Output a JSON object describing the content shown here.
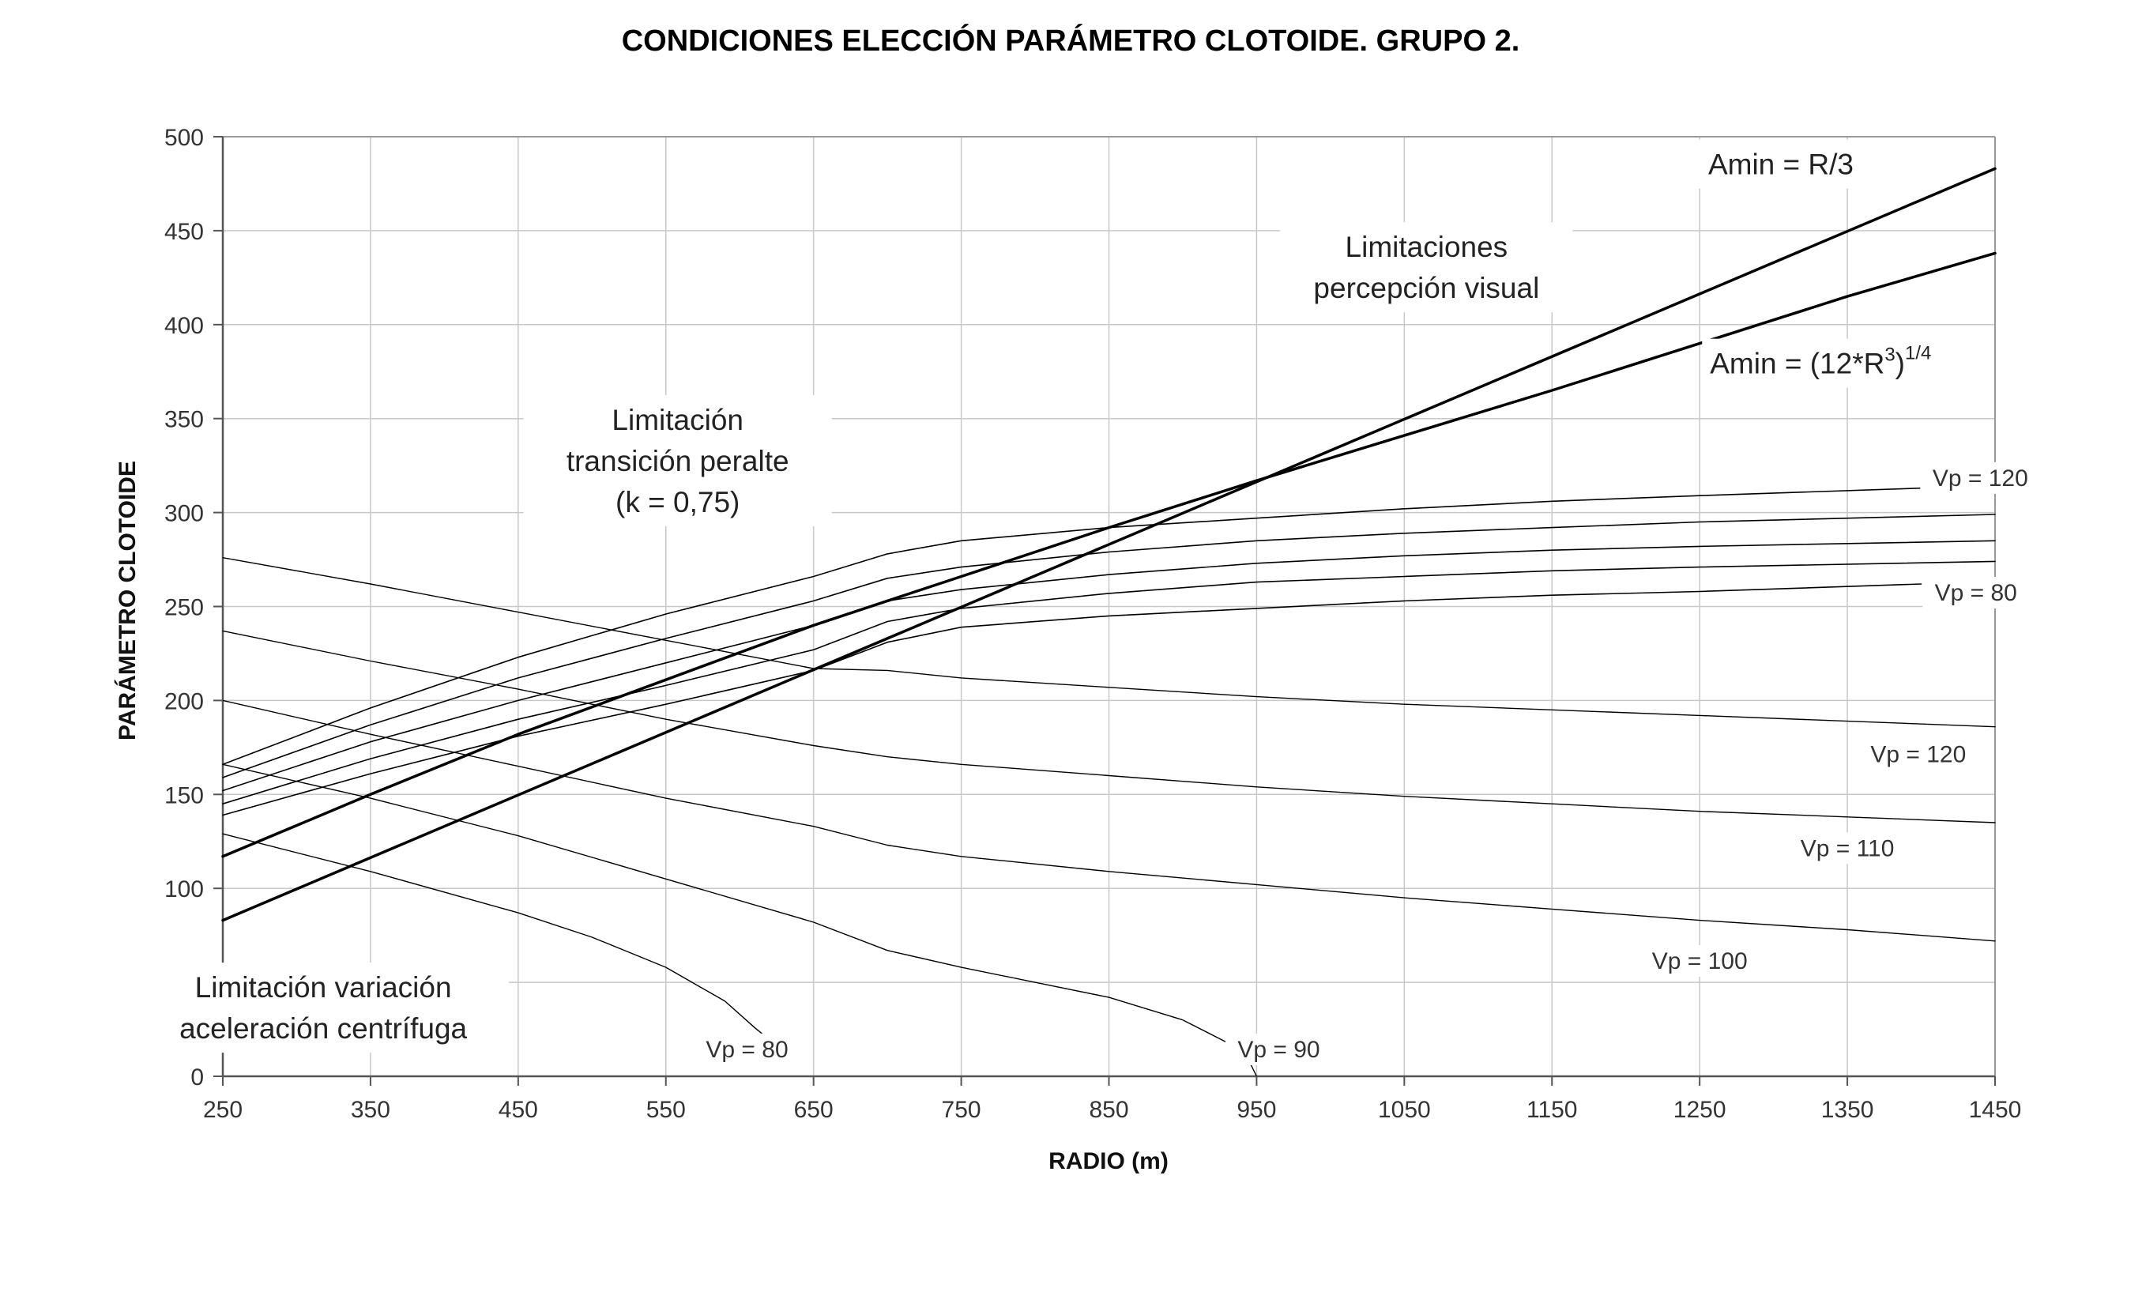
{
  "chart_data": {
    "type": "line",
    "title": "CONDICIONES ELECCIÓN PARÁMETRO CLOTOIDE. GRUPO 2.",
    "xlabel": "RADIO (m)",
    "ylabel": "PARÁMETRO CLOTOIDE",
    "xlim": [
      250,
      1450
    ],
    "ylim": [
      0,
      500
    ],
    "xticks": [
      250,
      350,
      450,
      550,
      650,
      750,
      850,
      950,
      1050,
      1150,
      1250,
      1350,
      1450
    ],
    "yticks": [
      0,
      50,
      100,
      150,
      200,
      250,
      300,
      350,
      400,
      450,
      500
    ],
    "grid": true,
    "legend": "none",
    "colors": {
      "grid": "#c8c8c8",
      "axis": "#555555",
      "line": "#000000",
      "frame": "#9a9a9a"
    },
    "series": [
      {
        "name": "",
        "group": "amin-r3",
        "width": 3.5,
        "points": [
          [
            250,
            83
          ],
          [
            1450,
            483
          ]
        ]
      },
      {
        "name": "",
        "group": "amin-root",
        "width": 3.5,
        "points": [
          [
            250,
            117
          ],
          [
            350,
            150
          ],
          [
            450,
            182
          ],
          [
            550,
            211
          ],
          [
            650,
            240
          ],
          [
            750,
            266
          ],
          [
            850,
            292
          ],
          [
            950,
            317
          ],
          [
            1050,
            341
          ],
          [
            1150,
            365
          ],
          [
            1250,
            390
          ],
          [
            1350,
            415
          ],
          [
            1450,
            438
          ]
        ]
      },
      {
        "name": "",
        "group": "peralte",
        "width": 1.6,
        "points": [
          [
            250,
            166
          ],
          [
            350,
            196
          ],
          [
            450,
            223
          ],
          [
            550,
            246
          ],
          [
            650,
            266
          ],
          [
            700,
            278
          ],
          [
            750,
            285
          ],
          [
            850,
            292
          ],
          [
            950,
            297
          ],
          [
            1050,
            302
          ],
          [
            1150,
            306
          ],
          [
            1250,
            309
          ],
          [
            1400,
            313
          ]
        ]
      },
      {
        "name": "",
        "group": "peralte",
        "width": 1.6,
        "points": [
          [
            250,
            159
          ],
          [
            350,
            187
          ],
          [
            450,
            212
          ],
          [
            550,
            233
          ],
          [
            650,
            253
          ],
          [
            700,
            265
          ],
          [
            750,
            271
          ],
          [
            850,
            279
          ],
          [
            950,
            285
          ],
          [
            1050,
            289
          ],
          [
            1150,
            292
          ],
          [
            1250,
            295
          ],
          [
            1450,
            299
          ]
        ]
      },
      {
        "name": "",
        "group": "peralte",
        "width": 1.6,
        "points": [
          [
            250,
            152
          ],
          [
            350,
            178
          ],
          [
            450,
            200
          ],
          [
            550,
            220
          ],
          [
            650,
            240
          ],
          [
            700,
            253
          ],
          [
            750,
            259
          ],
          [
            850,
            267
          ],
          [
            950,
            273
          ],
          [
            1050,
            277
          ],
          [
            1150,
            280
          ],
          [
            1250,
            282
          ],
          [
            1450,
            285
          ]
        ]
      },
      {
        "name": "",
        "group": "peralte",
        "width": 1.6,
        "points": [
          [
            250,
            145
          ],
          [
            350,
            169
          ],
          [
            450,
            190
          ],
          [
            550,
            208
          ],
          [
            650,
            227
          ],
          [
            700,
            242
          ],
          [
            750,
            249
          ],
          [
            850,
            257
          ],
          [
            950,
            263
          ],
          [
            1050,
            266
          ],
          [
            1150,
            269
          ],
          [
            1250,
            271
          ],
          [
            1450,
            274
          ]
        ]
      },
      {
        "name": "",
        "group": "peralte",
        "width": 1.6,
        "points": [
          [
            250,
            139
          ],
          [
            350,
            161
          ],
          [
            450,
            181
          ],
          [
            550,
            198
          ],
          [
            650,
            216
          ],
          [
            700,
            231
          ],
          [
            750,
            239
          ],
          [
            850,
            245
          ],
          [
            950,
            249
          ],
          [
            1050,
            253
          ],
          [
            1150,
            256
          ],
          [
            1250,
            258
          ],
          [
            1400,
            262
          ]
        ]
      },
      {
        "name": "",
        "group": "centrifuga",
        "width": 1.4,
        "points": [
          [
            250,
            276
          ],
          [
            350,
            262
          ],
          [
            450,
            247
          ],
          [
            550,
            232
          ],
          [
            650,
            217
          ],
          [
            700,
            216
          ],
          [
            750,
            212
          ],
          [
            850,
            207
          ],
          [
            950,
            202
          ],
          [
            1050,
            198
          ],
          [
            1150,
            195
          ],
          [
            1250,
            192
          ],
          [
            1350,
            189
          ],
          [
            1450,
            186
          ]
        ]
      },
      {
        "name": "",
        "group": "centrifuga",
        "width": 1.4,
        "points": [
          [
            250,
            237
          ],
          [
            350,
            221
          ],
          [
            450,
            206
          ],
          [
            550,
            190
          ],
          [
            650,
            176
          ],
          [
            700,
            170
          ],
          [
            750,
            166
          ],
          [
            850,
            160
          ],
          [
            950,
            154
          ],
          [
            1050,
            149
          ],
          [
            1150,
            145
          ],
          [
            1250,
            141
          ],
          [
            1350,
            138
          ],
          [
            1450,
            135
          ]
        ]
      },
      {
        "name": "",
        "group": "centrifuga",
        "width": 1.4,
        "points": [
          [
            250,
            200
          ],
          [
            350,
            182
          ],
          [
            450,
            165
          ],
          [
            550,
            148
          ],
          [
            650,
            133
          ],
          [
            700,
            123
          ],
          [
            750,
            117
          ],
          [
            850,
            109
          ],
          [
            950,
            102
          ],
          [
            1050,
            95
          ],
          [
            1150,
            89
          ],
          [
            1250,
            83
          ],
          [
            1350,
            78
          ],
          [
            1450,
            72
          ]
        ]
      },
      {
        "name": "",
        "group": "centrifuga",
        "width": 1.4,
        "points": [
          [
            250,
            166
          ],
          [
            350,
            148
          ],
          [
            450,
            128
          ],
          [
            550,
            105
          ],
          [
            650,
            82
          ],
          [
            700,
            67
          ],
          [
            750,
            58
          ],
          [
            850,
            42
          ],
          [
            900,
            30
          ],
          [
            930,
            18
          ],
          [
            945,
            8
          ],
          [
            950,
            0
          ]
        ]
      },
      {
        "name": "",
        "group": "centrifuga",
        "width": 1.4,
        "points": [
          [
            250,
            129
          ],
          [
            350,
            109
          ],
          [
            450,
            87
          ],
          [
            500,
            74
          ],
          [
            550,
            58
          ],
          [
            590,
            40
          ],
          [
            610,
            26
          ],
          [
            630,
            13
          ]
        ]
      }
    ],
    "annotations": [
      {
        "id": "amin-r3",
        "x": 1305,
        "y": 480,
        "anchor": "middle",
        "lines": [
          "Amin = R/3"
        ]
      },
      {
        "id": "amin-root",
        "x": 1257,
        "y": 374,
        "anchor": "start",
        "lines": [
          "Amin = (12*R",
          "3",
          ")",
          "1/4"
        ]
      },
      {
        "id": "percepcion",
        "x": 1065,
        "y": 436,
        "anchor": "middle",
        "lines": [
          "Limitaciones",
          "percepción visual"
        ]
      },
      {
        "id": "peralte",
        "x": 558,
        "y": 344,
        "anchor": "middle",
        "lines": [
          "Limitación",
          "transición peralte",
          "(k = 0,75)"
        ]
      },
      {
        "id": "centrifuga",
        "x": 318,
        "y": 42,
        "anchor": "middle",
        "lines": [
          "Limitación variación",
          "aceleración centrífuga"
        ]
      }
    ],
    "vp_labels": [
      {
        "text": "Vp = 120",
        "x": 1440,
        "y": 315
      },
      {
        "text": "Vp = 80",
        "x": 1437,
        "y": 254
      },
      {
        "text": "Vp = 120",
        "x": 1398,
        "y": 168
      },
      {
        "text": "Vp = 110",
        "x": 1350,
        "y": 118
      },
      {
        "text": "Vp = 100",
        "x": 1250,
        "y": 58
      },
      {
        "text": "Vp = 80",
        "x": 605,
        "y": 11
      },
      {
        "text": "Vp = 90",
        "x": 965,
        "y": 11
      }
    ]
  }
}
